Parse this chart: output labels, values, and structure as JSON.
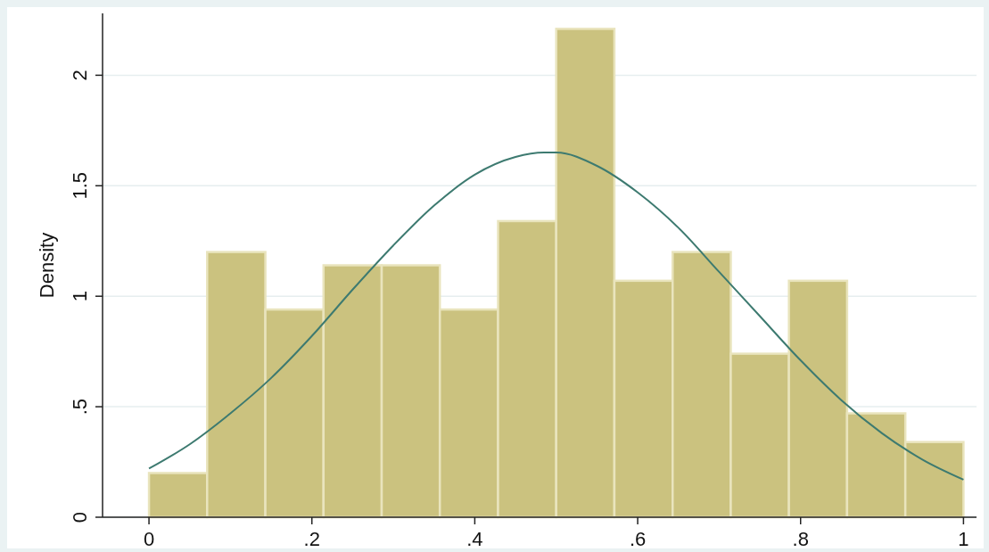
{
  "chart_data": {
    "type": "histogram",
    "ylabel": "Density",
    "bins": [
      0,
      0.0714,
      0.1429,
      0.2143,
      0.2857,
      0.3571,
      0.4286,
      0.5,
      0.5714,
      0.6429,
      0.7143,
      0.7857,
      0.8571,
      0.9286,
      1
    ],
    "series": [
      {
        "color": "#cbc27f",
        "values": [
          0.2,
          1.2,
          0.94,
          1.14,
          1.14,
          0.94,
          1.34,
          2.21,
          1.07,
          1.2,
          0.74,
          1.07,
          0.47,
          0.34
        ]
      },
      {
        "type": "line",
        "color": "#3d7a70",
        "x": [
          0,
          0.05,
          0.1,
          0.15,
          0.2,
          0.25,
          0.3,
          0.35,
          0.4,
          0.45,
          0.485,
          0.5,
          0.55,
          0.6,
          0.65,
          0.7,
          0.75,
          0.8,
          0.85,
          0.9,
          0.95,
          1
        ],
        "values": [
          0.22,
          0.33,
          0.47,
          0.63,
          0.82,
          1.03,
          1.23,
          1.41,
          1.55,
          1.63,
          1.65,
          1.65,
          1.59,
          1.47,
          1.31,
          1.11,
          0.91,
          0.71,
          0.53,
          0.38,
          0.26,
          0.17
        ]
      }
    ],
    "xlim": [
      -0.057,
      1.016
    ],
    "ylim": [
      0,
      2.28
    ],
    "xticks": [
      0,
      {
        "value": 0.2,
        "label": ".2"
      },
      {
        "value": 0.4,
        "label": ".4"
      },
      {
        "value": 0.6,
        "label": ".6"
      },
      {
        "value": 0.8,
        "label": ".8"
      },
      1
    ],
    "yticks": [
      0,
      {
        "value": 0.5,
        "label": ".5"
      },
      1,
      1.5,
      2
    ],
    "grid": "y"
  }
}
